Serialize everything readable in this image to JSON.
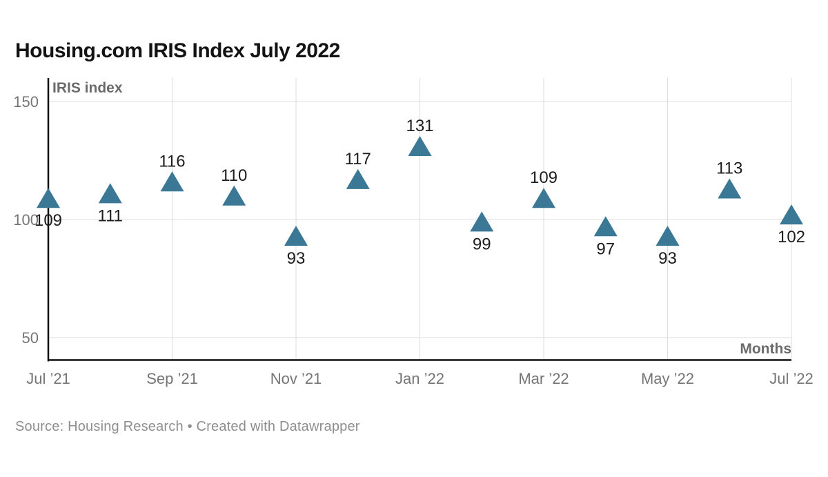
{
  "title": "Housing.com IRIS Index July 2022",
  "footer": "Source: Housing Research • Created with Datawrapper",
  "chart_data": {
    "type": "scatter",
    "marker": "triangle-up",
    "marker_color": "#3a7895",
    "label_color": "#1d1d1d",
    "title": "Housing.com IRIS Index July 2022",
    "ylabel": "IRIS index",
    "xlabel": "Months",
    "grid": "both",
    "legend": "none",
    "ylim": [
      40,
      160
    ],
    "y_ticks": [
      150,
      100,
      50
    ],
    "x_tick_labels": [
      "Jul ’21",
      "Sep ’21",
      "Nov ’21",
      "Jan ’22",
      "Mar ’22",
      "May ’22",
      "Jul ’22"
    ],
    "x_tick_month_indices": [
      0,
      2,
      4,
      6,
      8,
      10,
      12
    ],
    "categories": [
      "Jul ’21",
      "Aug ’21",
      "Sep ’21",
      "Oct ’21",
      "Nov ’21",
      "Dec ’21",
      "Jan ’22",
      "Feb ’22",
      "Mar ’22",
      "Apr ’22",
      "May ’22",
      "Jun ’22",
      "Jul ’22"
    ],
    "values": [
      109,
      111,
      116,
      110,
      93,
      117,
      131,
      99,
      109,
      97,
      93,
      113,
      102
    ],
    "label_positions": [
      "below",
      "below",
      "above",
      "above",
      "below",
      "above",
      "above",
      "below",
      "above",
      "below",
      "below",
      "above",
      "below"
    ]
  }
}
